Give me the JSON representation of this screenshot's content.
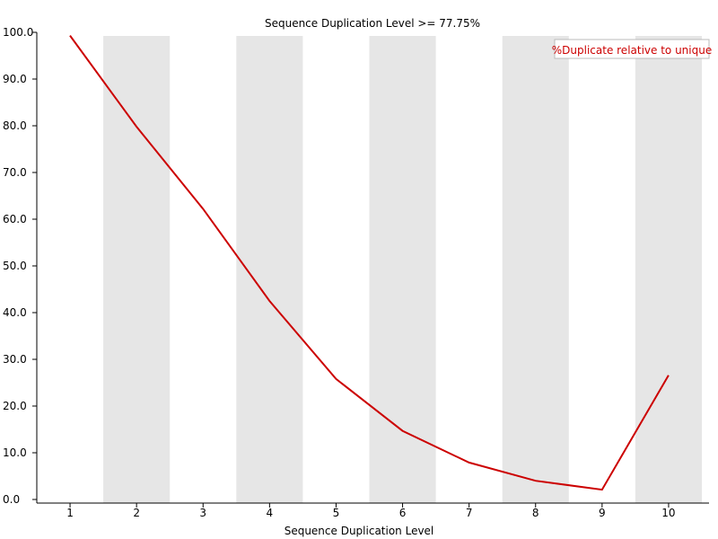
{
  "chart_data": {
    "type": "line",
    "title": "Sequence Duplication Level >= 77.75%",
    "xlabel": "Sequence Duplication Level",
    "ylabel": "",
    "categories": [
      "1",
      "2",
      "3",
      "4",
      "5",
      "6",
      "7",
      "8",
      "9",
      "10"
    ],
    "yticks": [
      "0.0",
      "10.0",
      "20.0",
      "30.0",
      "40.0",
      "50.0",
      "60.0",
      "70.0",
      "80.0",
      "90.0",
      "100.0"
    ],
    "ylim": [
      0,
      100
    ],
    "grid": "alternating vertical bands",
    "band_color": "#e6e6e6",
    "legend_position": "top-right",
    "series": [
      {
        "name": "%Duplicate relative to unique",
        "color": "#cc0000",
        "values": [
          99.3,
          79.8,
          62.2,
          42.5,
          25.8,
          14.7,
          7.9,
          4.0,
          2.1,
          26.6
        ]
      }
    ]
  }
}
